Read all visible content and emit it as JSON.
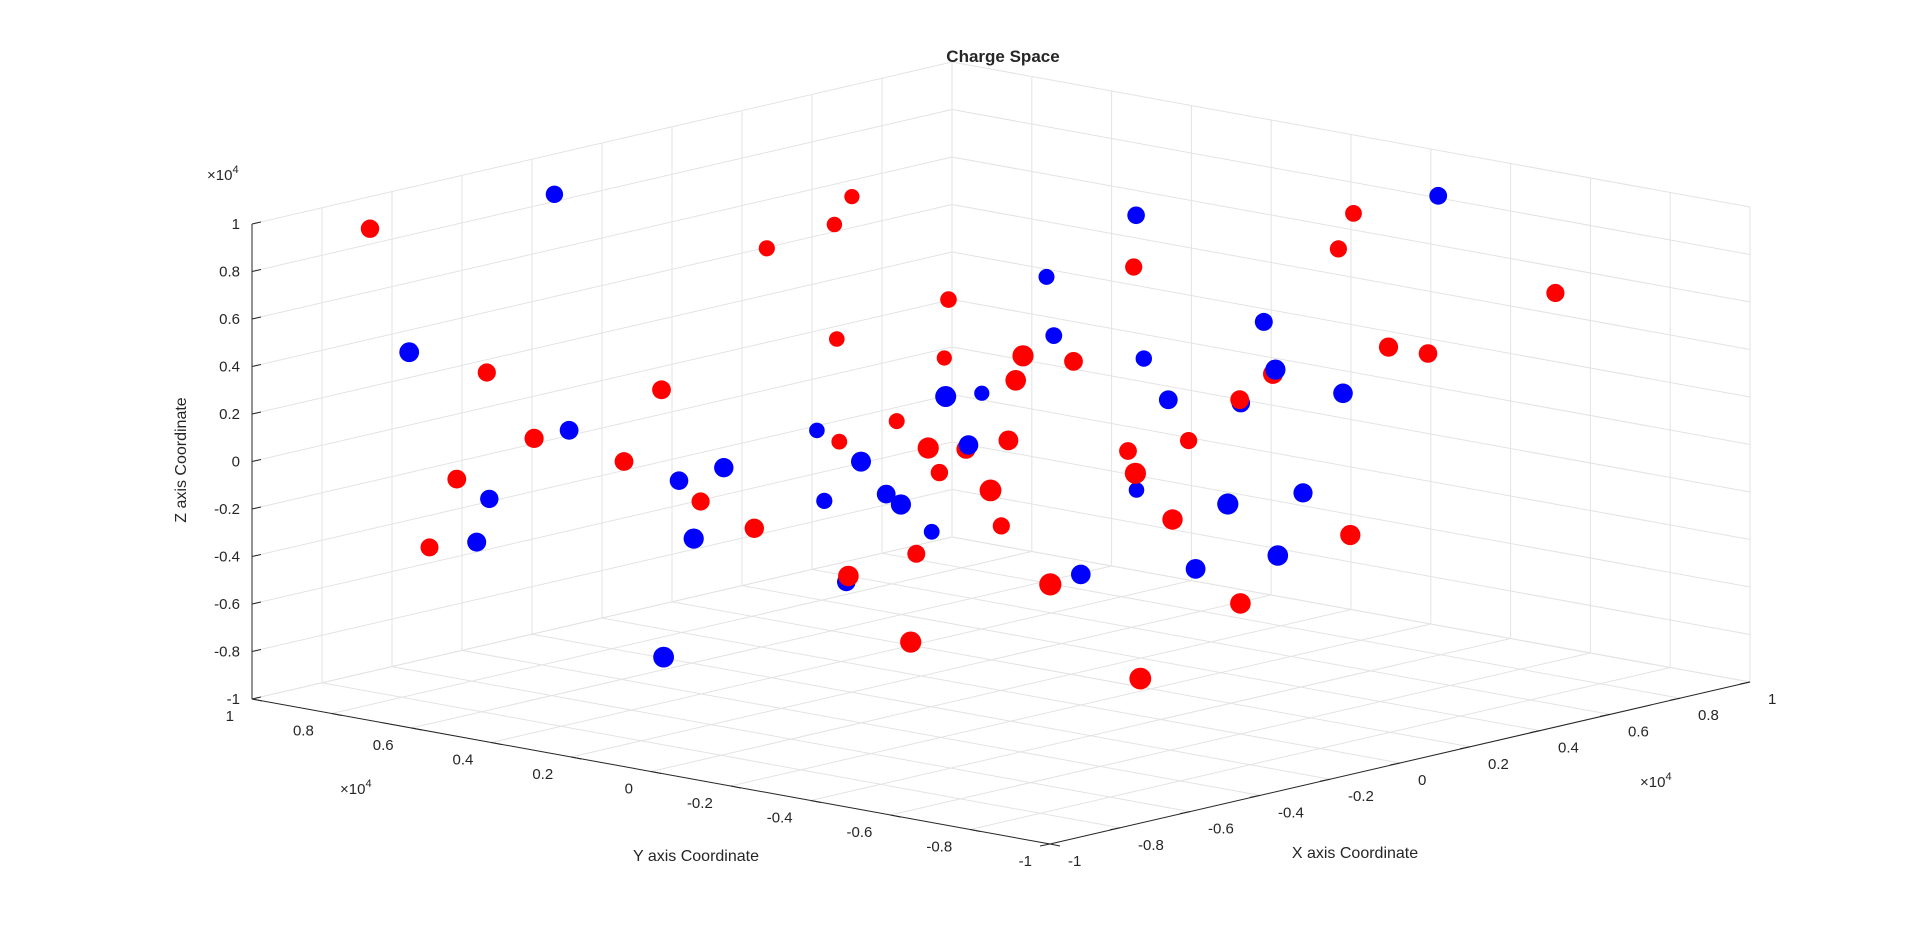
{
  "colors": {
    "negative": "#0000ff",
    "positive": "#ff0000",
    "axis": "#262626",
    "grid": "#e3e3e3"
  },
  "chart_data": {
    "type": "scatter",
    "subtype": "3d",
    "title": "Charge Space",
    "xlabel": "X axis Coordinate",
    "ylabel": "Y axis Coordinate",
    "zlabel": "Z axis Coordinate",
    "exponent": "×10^4",
    "exponent_base": "×10",
    "exponent_power": "4",
    "xlim": [
      -1,
      1
    ],
    "ylim": [
      -1,
      1
    ],
    "zlim": [
      -1,
      1
    ],
    "grid": true,
    "x_ticks": [
      "-1",
      "-0.8",
      "-0.6",
      "-0.4",
      "-0.2",
      "0",
      "0.2",
      "0.4",
      "0.6",
      "0.8",
      "1"
    ],
    "y_ticks": [
      "1",
      "0.8",
      "0.6",
      "0.4",
      "0.2",
      "0",
      "-0.2",
      "-0.4",
      "-0.6",
      "-0.8",
      "-1"
    ],
    "z_ticks": [
      "-1",
      "-0.8",
      "-0.6",
      "-0.4",
      "-0.2",
      "0",
      "0.2",
      "0.4",
      "0.6",
      "0.8",
      "1"
    ],
    "series": [
      {
        "color": "#ff0000",
        "points": [
          [
            0.48,
            -0.55,
            0.45
          ],
          [
            0.34,
            -0.3,
            0.2
          ],
          [
            -0.72,
            0.95,
            0.9
          ],
          [
            -0.22,
            0.56,
            -0.3
          ],
          [
            -0.65,
            0.6,
            0.1
          ],
          [
            -0.45,
            -0.45,
            0.7
          ],
          [
            -0.55,
            -0.3,
            0.3
          ],
          [
            0.5,
            0.7,
            -0.25
          ],
          [
            0.42,
            0.05,
            -0.15
          ],
          [
            0.2,
            -0.7,
            -0.2
          ],
          [
            0.3,
            0.85,
            0.5
          ],
          [
            -0.6,
            -0.65,
            -0.15
          ],
          [
            -0.3,
            -0.3,
            0.5
          ],
          [
            -0.4,
            -0.7,
            -0.6
          ],
          [
            0.15,
            -0.05,
            0.35
          ],
          [
            0.65,
            0.1,
            -0.2
          ],
          [
            -0.5,
            0.85,
            0.25
          ],
          [
            0.4,
            0.35,
            -0.55
          ],
          [
            -0.7,
            0.75,
            -0.1
          ],
          [
            -0.42,
            0.25,
            -0.25
          ],
          [
            0.55,
            0.9,
            0.5
          ],
          [
            -0.08,
            -0.5,
            -0.1
          ],
          [
            0.1,
            0.3,
            -0.55
          ],
          [
            -0.4,
            0.5,
            0.25
          ],
          [
            0.65,
            -0.5,
            0.35
          ],
          [
            0.5,
            0.85,
            0.05
          ],
          [
            0.85,
            -0.1,
            0.6
          ],
          [
            0.42,
            0.5,
            0.35
          ],
          [
            -0.55,
            -0.1,
            -0.3
          ],
          [
            -0.3,
            -0.6,
            0.2
          ],
          [
            0.28,
            0.4,
            -0.3
          ],
          [
            -0.6,
            -0.3,
            -0.5
          ],
          [
            0.55,
            0.15,
            0.55
          ],
          [
            -0.45,
            0.55,
            -0.05
          ],
          [
            0.0,
            -0.6,
            -0.45
          ],
          [
            -0.1,
            0.0,
            0.05
          ],
          [
            -0.55,
            0.95,
            -0.5
          ],
          [
            -0.6,
            -0.5,
            0.2
          ],
          [
            0.95,
            -0.05,
            0.7
          ],
          [
            0.15,
            -0.55,
            0.45
          ],
          [
            0.45,
            0.8,
            -0.35
          ],
          [
            0.9,
            -0.6,
            0.55
          ],
          [
            0.6,
            0.9,
            0.6
          ],
          [
            0.75,
            0.8,
            -0.1
          ],
          [
            -0.15,
            -0.15,
            0.15
          ]
        ]
      },
      {
        "color": "#0000ff",
        "points": [
          [
            -0.25,
            0.9,
            0.9
          ],
          [
            -0.95,
            0.65,
            0.55
          ],
          [
            -0.55,
            0.6,
            0.1
          ],
          [
            0.35,
            -0.55,
            0.3
          ],
          [
            -0.65,
            0.2,
            -0.2
          ],
          [
            -0.5,
            -0.3,
            0.5
          ],
          [
            -0.7,
            0.7,
            -0.35
          ],
          [
            0.05,
            -0.65,
            -0.25
          ],
          [
            -0.35,
            0.5,
            -0.15
          ],
          [
            0.1,
            -0.6,
            0.5
          ],
          [
            0.58,
            -0.15,
            0.4
          ],
          [
            -0.4,
            0.0,
            0.1
          ],
          [
            0.25,
            -0.2,
            0.2
          ],
          [
            0.5,
            0.1,
            0.8
          ],
          [
            -0.15,
            -0.7,
            0.05
          ],
          [
            0.4,
            -0.25,
            0.15
          ],
          [
            -0.45,
            0.3,
            0.0
          ],
          [
            0.55,
            0.35,
            0.2
          ],
          [
            -0.4,
            -0.1,
            -0.05
          ],
          [
            -0.55,
            0.8,
            -0.25
          ],
          [
            0.75,
            0.3,
            0.05
          ],
          [
            -0.1,
            0.2,
            -0.2
          ],
          [
            -0.15,
            -0.05,
            0.1
          ],
          [
            0.7,
            0.5,
            0.35
          ],
          [
            0.85,
            -0.35,
            0.9
          ],
          [
            0.35,
            0.75,
            -0.55
          ],
          [
            -0.85,
            0.1,
            -0.6
          ],
          [
            0.1,
            -0.4,
            -0.4
          ],
          [
            0.6,
            0.7,
            -0.75
          ],
          [
            0.9,
            0.45,
            -0.6
          ],
          [
            0.8,
            0.75,
            -0.25
          ],
          [
            0.0,
            -0.2,
            -0.45
          ],
          [
            -0.1,
            0.3,
            -0.6
          ],
          [
            0.5,
            0.9,
            -0.35
          ],
          [
            0.35,
            -0.45,
            -0.15
          ]
        ]
      }
    ]
  }
}
